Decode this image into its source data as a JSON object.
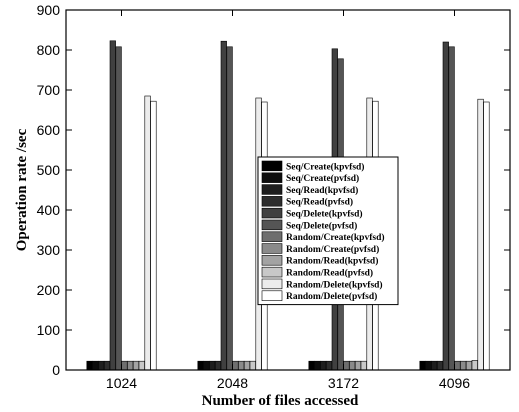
{
  "chart_data": {
    "type": "bar",
    "xlabel": "Number of files accessed",
    "ylabel": "Operation rate /sec",
    "ylim": [
      0,
      900
    ],
    "yticks": [
      "0",
      "100",
      "200",
      "300",
      "400",
      "500",
      "600",
      "700",
      "800",
      "900"
    ],
    "categories": [
      "1024",
      "2048",
      "3172",
      "4096"
    ],
    "grid": false,
    "legend_position": "center-right",
    "series": [
      {
        "name": "Seq/Create(kpvfsd)",
        "color": "#000000",
        "values": [
          22,
          22,
          22,
          22
        ]
      },
      {
        "name": "Seq/Create(pvfsd)",
        "color": "#0d0d0d",
        "values": [
          22,
          22,
          22,
          22
        ]
      },
      {
        "name": "Seq/Read(kpvfsd)",
        "color": "#1e1e1e",
        "values": [
          22,
          22,
          22,
          22
        ]
      },
      {
        "name": "Seq/Read(pvfsd)",
        "color": "#2d2d2d",
        "values": [
          22,
          22,
          22,
          22
        ]
      },
      {
        "name": "Seq/Delete(kpvfsd)",
        "color": "#404040",
        "values": [
          823,
          822,
          803,
          820
        ]
      },
      {
        "name": "Seq/Delete(pvfsd)",
        "color": "#555555",
        "values": [
          808,
          808,
          778,
          808
        ]
      },
      {
        "name": "Random/Create(kpvfsd)",
        "color": "#6e6e6e",
        "values": [
          22,
          22,
          22,
          22
        ]
      },
      {
        "name": "Random/Create(pvfsd)",
        "color": "#8a8a8a",
        "values": [
          22,
          22,
          22,
          22
        ]
      },
      {
        "name": "Random/Read(kpvfsd)",
        "color": "#a3a3a3",
        "values": [
          22,
          22,
          22,
          22
        ]
      },
      {
        "name": "Random/Read(pvfsd)",
        "color": "#c8c8c8",
        "values": [
          22,
          22,
          22,
          24
        ]
      },
      {
        "name": "Random/Delete(kpvfsd)",
        "color": "#ececec",
        "values": [
          685,
          680,
          680,
          677
        ]
      },
      {
        "name": "Random/Delete(pvfsd)",
        "color": "#ffffff",
        "values": [
          672,
          670,
          672,
          670
        ]
      }
    ]
  }
}
